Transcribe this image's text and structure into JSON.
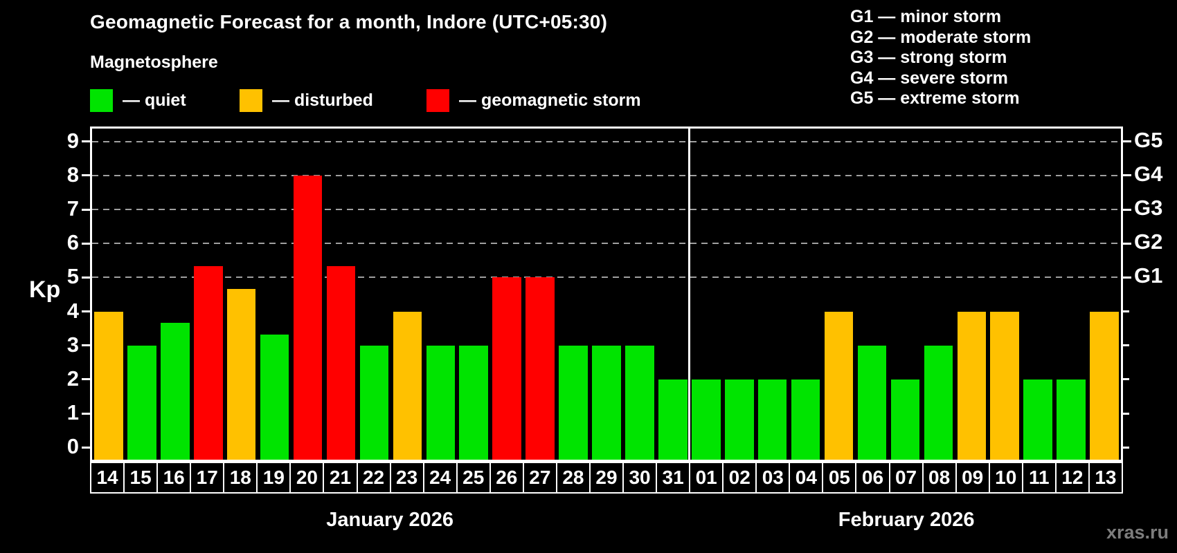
{
  "title": "Geomagnetic Forecast for a month, Indore (UTC+05:30)",
  "subtitle": "Magnetosphere",
  "axis": {
    "y_title": "Kp",
    "y_ticks": [
      "0",
      "1",
      "2",
      "3",
      "4",
      "5",
      "6",
      "7",
      "8",
      "9"
    ]
  },
  "legend": {
    "items": [
      {
        "key": "quiet",
        "label": "— quiet",
        "color": "#00e400"
      },
      {
        "key": "disturbed",
        "label": "— disturbed",
        "color": "#ffc100"
      },
      {
        "key": "storm",
        "label": "— geomagnetic storm",
        "color": "#ff0000"
      }
    ]
  },
  "g_scale": {
    "lines": [
      "G1 — minor storm",
      "G2 — moderate storm",
      "G3 — strong storm",
      "G4 — severe storm",
      "G5 — extreme storm"
    ],
    "axis_labels": [
      {
        "label": "G1",
        "kp": 5
      },
      {
        "label": "G2",
        "kp": 6
      },
      {
        "label": "G3",
        "kp": 7
      },
      {
        "label": "G4",
        "kp": 8
      },
      {
        "label": "G5",
        "kp": 9
      }
    ]
  },
  "watermark": "xras.ru",
  "chart_data": {
    "type": "bar",
    "title": "Geomagnetic Forecast for a month, Indore (UTC+05:30)",
    "ylabel": "Kp",
    "ylim": [
      0,
      9
    ],
    "grid_kp_levels": [
      5,
      6,
      7,
      8,
      9
    ],
    "legend_position": "top-left",
    "color_map": {
      "quiet": "#00e400",
      "disturbed": "#ffc100",
      "storm": "#ff0000"
    },
    "months": [
      {
        "label": "January 2026",
        "days": [
          "14",
          "15",
          "16",
          "17",
          "18",
          "19",
          "20",
          "21",
          "22",
          "23",
          "24",
          "25",
          "26",
          "27",
          "28",
          "29",
          "30",
          "31"
        ],
        "values": [
          4,
          3,
          3.67,
          5.33,
          4.67,
          3.33,
          8,
          5.33,
          3,
          4,
          3,
          3,
          5,
          5,
          3,
          3,
          3,
          2
        ],
        "states": [
          "disturbed",
          "quiet",
          "quiet",
          "storm",
          "disturbed",
          "quiet",
          "storm",
          "storm",
          "quiet",
          "disturbed",
          "quiet",
          "quiet",
          "storm",
          "storm",
          "quiet",
          "quiet",
          "quiet",
          "quiet"
        ]
      },
      {
        "label": "February 2026",
        "days": [
          "01",
          "02",
          "03",
          "04",
          "05",
          "06",
          "07",
          "08",
          "09",
          "10",
          "11",
          "12",
          "13"
        ],
        "values": [
          2,
          2,
          2,
          2,
          4,
          3,
          2,
          3,
          4,
          4,
          2,
          2,
          4
        ],
        "states": [
          "quiet",
          "quiet",
          "quiet",
          "quiet",
          "disturbed",
          "quiet",
          "quiet",
          "quiet",
          "disturbed",
          "disturbed",
          "quiet",
          "quiet",
          "disturbed"
        ]
      }
    ]
  }
}
